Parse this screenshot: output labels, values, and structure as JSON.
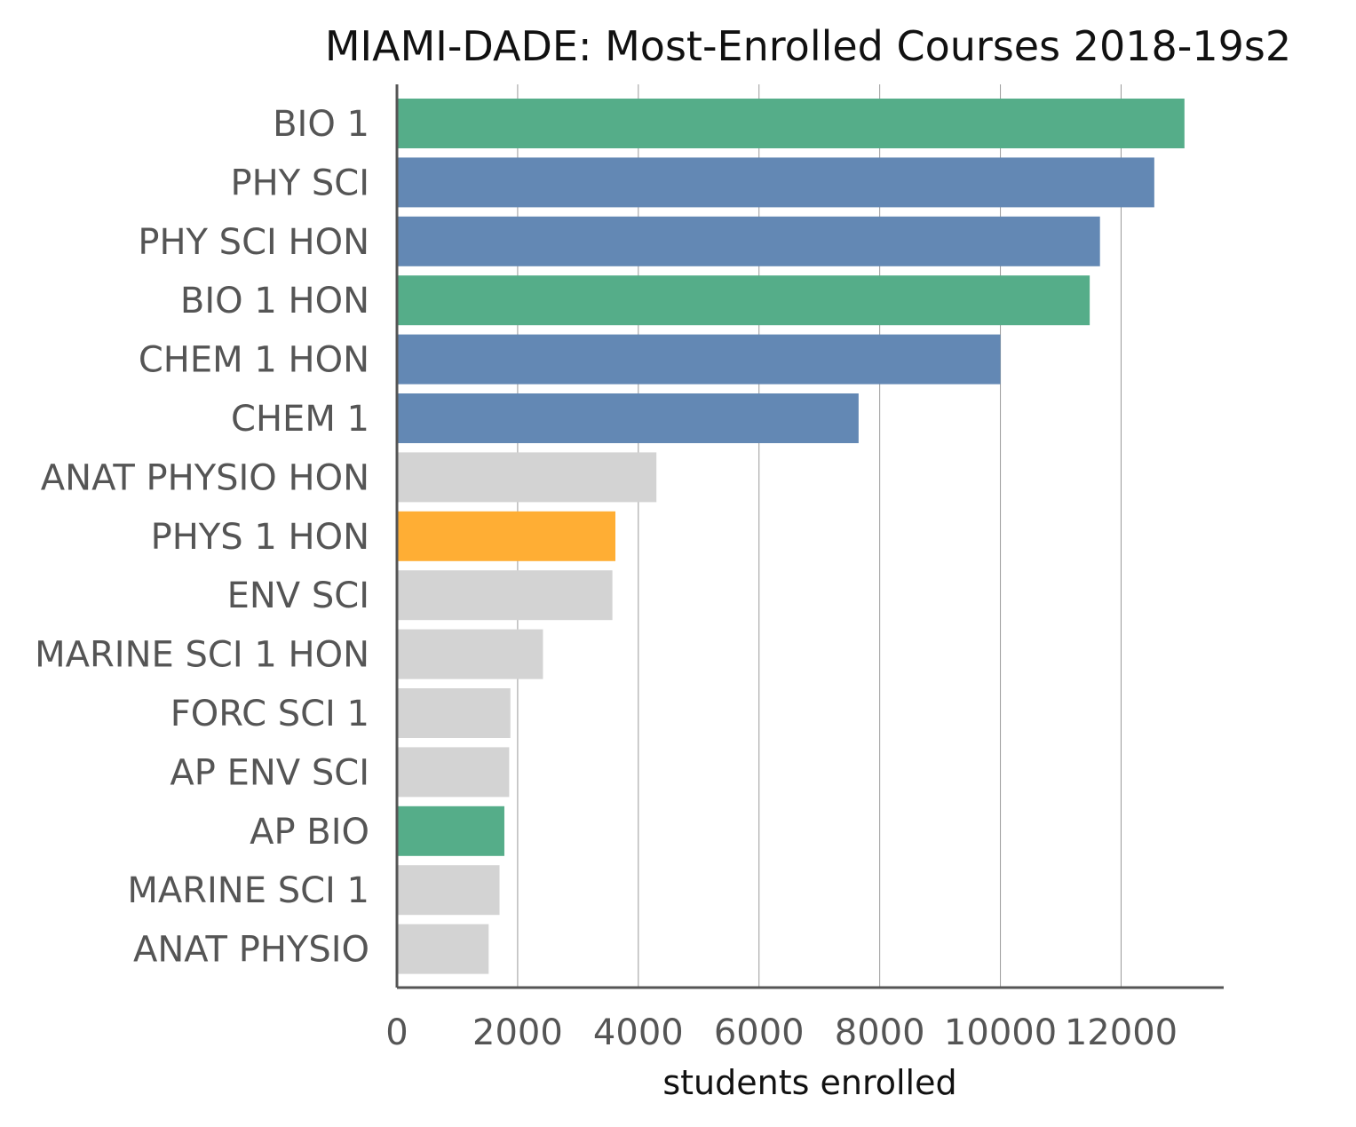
{
  "chart_data": {
    "type": "bar",
    "orientation": "horizontal",
    "title": "MIAMI-DADE: Most-Enrolled Courses 2018-19s2",
    "xlabel": "students enrolled",
    "ylabel": "",
    "xlim": [
      0,
      13700
    ],
    "xticks": [
      0,
      2000,
      4000,
      6000,
      8000,
      10000,
      12000
    ],
    "xtick_labels": [
      "0",
      "2000",
      "4000",
      "6000",
      "8000",
      "10000",
      "12000"
    ],
    "grid": "vertical",
    "categories": [
      "BIO 1",
      "PHY SCI",
      "PHY SCI HON",
      "BIO 1 HON",
      "CHEM 1 HON",
      "CHEM 1",
      "ANAT PHYSIO HON",
      "PHYS 1 HON",
      "ENV SCI",
      "MARINE SCI 1 HON",
      "FORC SCI 1",
      "AP ENV SCI",
      "AP BIO",
      "MARINE SCI 1",
      "ANAT PHYSIO"
    ],
    "values": [
      13050,
      12550,
      11650,
      11480,
      10000,
      7650,
      4300,
      3620,
      3570,
      2420,
      1880,
      1860,
      1780,
      1700,
      1520
    ],
    "bar_colors": [
      "#55ad89",
      "#6388b4",
      "#6388b4",
      "#55ad89",
      "#6388b4",
      "#6388b4",
      "#d3d3d3",
      "#ffae34",
      "#d3d3d3",
      "#d3d3d3",
      "#d3d3d3",
      "#d3d3d3",
      "#55ad89",
      "#d3d3d3",
      "#d3d3d3"
    ]
  }
}
